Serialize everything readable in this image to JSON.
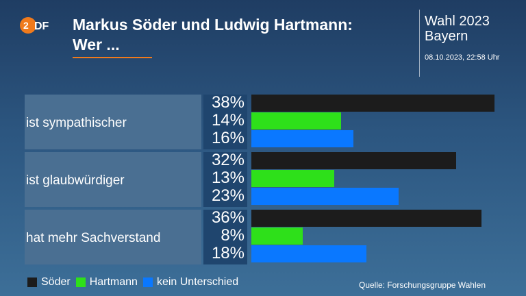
{
  "header": {
    "logo_text": "ZDF",
    "title": "Markus Söder und Ludwig Hartmann:\nWer ...",
    "election": "Wahl 2023",
    "region": "Bayern",
    "timestamp": "08.10.2023, 22:58 Uhr"
  },
  "chart_data": {
    "type": "bar",
    "orientation": "horizontal",
    "categories": [
      "ist sympathischer",
      "ist glaubwürdiger",
      "hat mehr Sachverstand"
    ],
    "series": [
      {
        "name": "Söder",
        "color": "#1c1c1c",
        "values": [
          38,
          32,
          36
        ]
      },
      {
        "name": "Hartmann",
        "color": "#2ee01a",
        "values": [
          14,
          13,
          8
        ]
      },
      {
        "name": "kein Unterschied",
        "color": "#0a78ff",
        "values": [
          16,
          23,
          18
        ]
      }
    ],
    "value_unit": "%",
    "xlim": [
      0,
      38
    ]
  },
  "footer": {
    "source": "Quelle: Forschungsgruppe Wahlen"
  }
}
